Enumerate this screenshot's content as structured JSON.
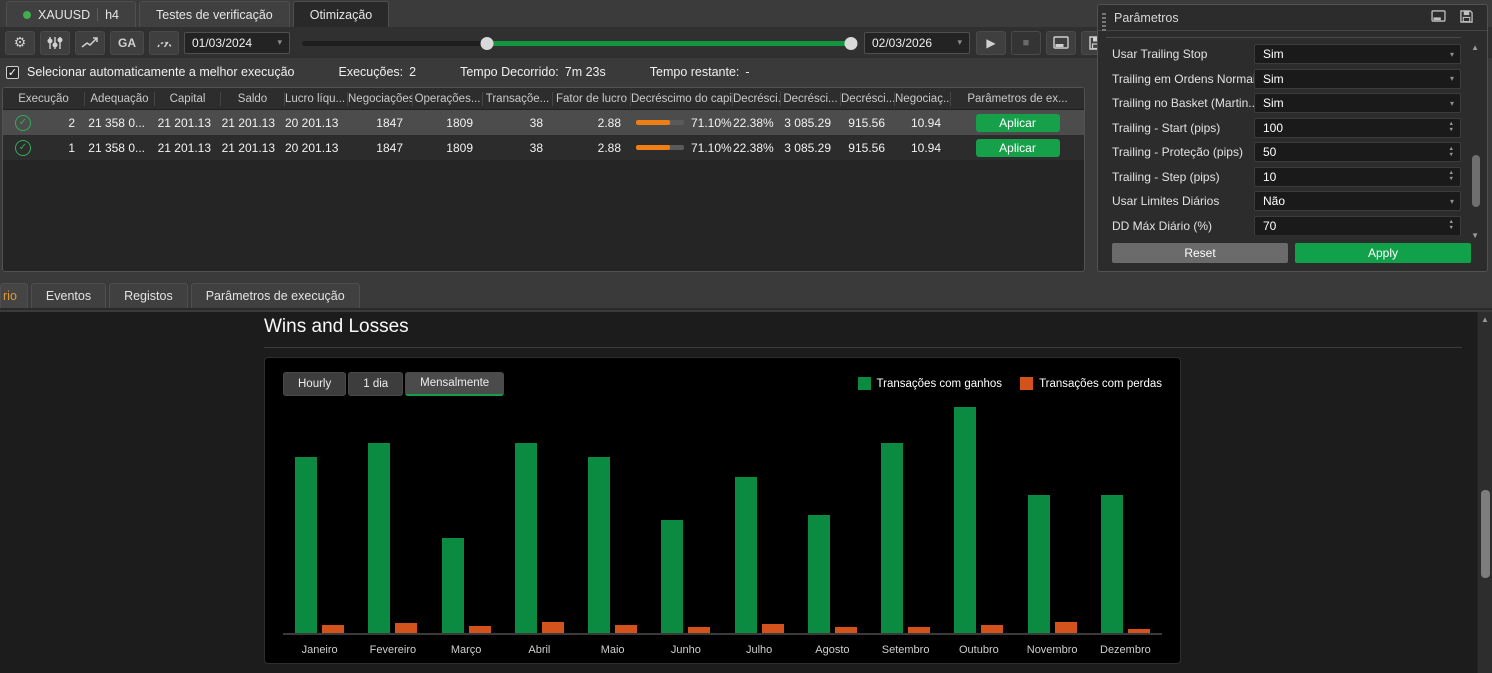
{
  "top_tabs": {
    "symbol_tab": {
      "symbol": "XAUUSD",
      "timeframe": "h4"
    },
    "verification": {
      "label": "Testes de verificação"
    },
    "optimization": {
      "label": "Otimização"
    }
  },
  "toolbar": {
    "ga_label": "GA",
    "date_from": "01/03/2024",
    "date_to": "02/03/2026",
    "range_slider": {
      "left_handle_pct": 33.2,
      "right_handle_pct": 98.8
    },
    "icons": {
      "gear": "settings",
      "sliders": "parameters",
      "chart": "equity-curve",
      "gauge": "performance",
      "play": "start",
      "stop": "stop",
      "panel": "show-panel",
      "save": "save"
    }
  },
  "status": {
    "checkbox_checked": true,
    "checkbox_label": "Selecionar automaticamente a melhor execução",
    "executions_label": "Execuções:",
    "executions_value": "2",
    "elapsed_label": "Tempo Decorrido:",
    "elapsed_value": "7m 23s",
    "remaining_label": "Tempo restante:",
    "remaining_value": "-"
  },
  "results_table": {
    "columns": [
      "Execução",
      "Adequação",
      "Capital",
      "Saldo",
      "Lucro líqu...",
      "Negociações",
      "Operações...",
      "Transaçõe...",
      "Fator de lucro",
      "Decréscimo do capit...",
      "Decrésci...",
      "Decrésci...",
      "Decrésci...",
      "Negociaç...",
      "Parâmetros de ex..."
    ],
    "sort_column_index": 4,
    "action_label": "Aplicar",
    "rows": [
      {
        "selected": true,
        "execucao": "2",
        "adequacao": "21 358 0...",
        "capital": "21 201.13",
        "saldo": "21 201.13",
        "lucro_liquido": "20 201.13",
        "negociacoes": "1847",
        "operacoes": "1809",
        "transacoes": "38",
        "fator_de_lucro": "2.88",
        "decrescimo_capital_pct": "71.10%",
        "decrescimo_pct": "22.38%",
        "decrescimo_abs": "3 085.29",
        "decrescimo_2": "915.56",
        "negociacao": "10.94"
      },
      {
        "selected": false,
        "execucao": "1",
        "adequacao": "21 358 0...",
        "capital": "21 201.13",
        "saldo": "21 201.13",
        "lucro_liquido": "20 201.13",
        "negociacoes": "1847",
        "operacoes": "1809",
        "transacoes": "38",
        "fator_de_lucro": "2.88",
        "decrescimo_capital_pct": "71.10%",
        "decrescimo_pct": "22.38%",
        "decrescimo_abs": "3 085.29",
        "decrescimo_2": "915.56",
        "negociacao": "10.94"
      }
    ]
  },
  "parameters_panel": {
    "title": "Parâmetros",
    "fields": [
      {
        "label": "Usar Trailing Stop",
        "value": "Sim",
        "control": "dropdown"
      },
      {
        "label": "Trailing em Ordens Normais",
        "value": "Sim",
        "control": "dropdown"
      },
      {
        "label": "Trailing no Basket (Martin...",
        "value": "Sim",
        "control": "dropdown"
      },
      {
        "label": "Trailing - Start (pips)",
        "value": "100",
        "control": "spinner"
      },
      {
        "label": "Trailing - Proteção (pips)",
        "value": "50",
        "control": "spinner"
      },
      {
        "label": "Trailing - Step (pips)",
        "value": "10",
        "control": "spinner"
      },
      {
        "label": "Usar Limites Diários",
        "value": "Não",
        "control": "dropdown"
      },
      {
        "label": "DD Máx Diário (%)",
        "value": "70",
        "control": "spinner"
      }
    ],
    "reset_label": "Reset",
    "apply_label": "Apply"
  },
  "bottom_tabs": [
    {
      "label": "rio",
      "active": true,
      "partial": true
    },
    {
      "label": "Eventos",
      "active": false,
      "partial": false
    },
    {
      "label": "Registos",
      "active": false,
      "partial": false
    },
    {
      "label": "Parâmetros de execução",
      "active": false,
      "partial": false
    }
  ],
  "report": {
    "title": "Wins and Losses",
    "period_buttons": [
      "Hourly",
      "1 dia",
      "Mensalmente"
    ],
    "active_period": "Mensalmente",
    "legend": [
      {
        "label": "Transações com ganhos",
        "color": "#0b8b41"
      },
      {
        "label": "Transações com perdas",
        "color": "#d4521c"
      }
    ]
  },
  "chart_data": {
    "type": "bar",
    "title": "Wins and Losses",
    "xlabel": "",
    "ylabel": "",
    "note": "no numeric y-axis shown in UI; values are relative bar heights as % of the tallest bar (Outubro wins = 100)",
    "categories": [
      "Janeiro",
      "Fevereiro",
      "Março",
      "Abril",
      "Maio",
      "Junho",
      "Julho",
      "Agosto",
      "Setembro",
      "Outubro",
      "Novembro",
      "Dezembro"
    ],
    "series": [
      {
        "name": "Transações com ganhos",
        "color": "#0b8b41",
        "values": [
          78,
          84,
          42,
          84,
          78,
          50,
          69,
          52,
          84,
          100,
          61,
          61
        ]
      },
      {
        "name": "Transações com perdas",
        "color": "#d4521c",
        "values": [
          3.5,
          4.4,
          3.0,
          4.9,
          3.5,
          2.7,
          4.0,
          2.7,
          2.7,
          3.5,
          4.9,
          1.8
        ]
      }
    ],
    "legend_position": "top-right",
    "grid": false
  },
  "glyphs": {
    "check": "✓",
    "caret_down": "▾",
    "arrow_up": "▲",
    "arrow_down": "▼",
    "sort_desc": "▼",
    "play": "▶",
    "stop": "■"
  }
}
